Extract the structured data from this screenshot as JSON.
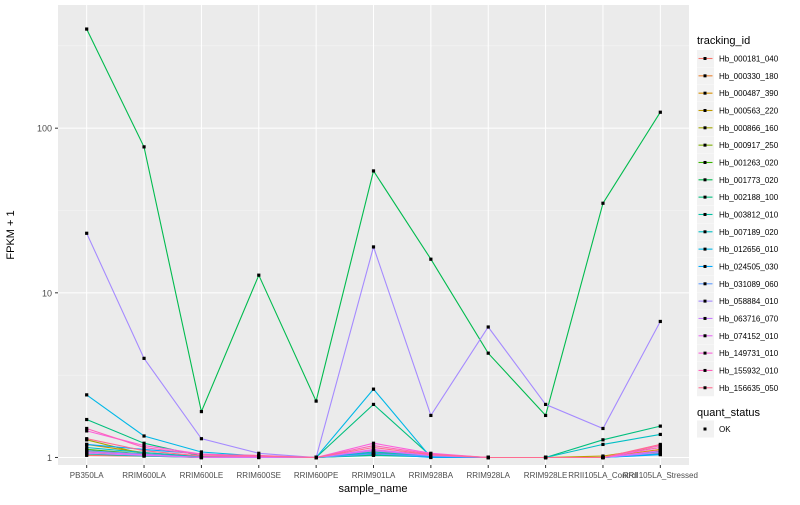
{
  "chart_data": {
    "type": "line",
    "y_scale": "log10",
    "ylabel": "FPKM + 1",
    "xlabel": "sample_name",
    "categories": [
      "PB350LA",
      "RRIM600LA",
      "RRIM600LE",
      "RRIM600SE",
      "RRIM600PE",
      "RRIM901LA",
      "RRIM928BA",
      "RRIM928LA",
      "RRIM928LE",
      "RRII105LA_Control",
      "RRII105LA_Stressed"
    ],
    "y_ticks": [
      {
        "value": 1,
        "label": "1"
      },
      {
        "value": 10,
        "label": "10"
      },
      {
        "value": 100,
        "label": "100"
      }
    ],
    "ylim": [
      0.9,
      560
    ],
    "legend_color": {
      "title": "tracking_id",
      "position": "right"
    },
    "legend_shape": {
      "title": "quant_status",
      "items": [
        {
          "label": "OK"
        }
      ]
    },
    "series": [
      {
        "name": "Hb_000181_040",
        "color": "#F8766D",
        "values": [
          1.03,
          1.02,
          1.0,
          1.0,
          1.0,
          1.05,
          1.02,
          1.0,
          1.0,
          1.0,
          1.08
        ]
      },
      {
        "name": "Hb_000330_180",
        "color": "#EA8331",
        "values": [
          1.05,
          1.03,
          1.0,
          1.01,
          1.0,
          1.06,
          1.03,
          1.0,
          1.0,
          1.0,
          1.1
        ]
      },
      {
        "name": "Hb_000487_390",
        "color": "#D89000",
        "values": [
          1.1,
          1.04,
          1.0,
          1.02,
          1.0,
          1.08,
          1.04,
          1.0,
          1.0,
          1.0,
          1.12
        ]
      },
      {
        "name": "Hb_000563_220",
        "color": "#C09B00",
        "values": [
          1.2,
          1.07,
          1.01,
          1.02,
          1.0,
          1.1,
          1.05,
          1.0,
          1.0,
          1.02,
          1.15
        ]
      },
      {
        "name": "Hb_000866_160",
        "color": "#A3A500",
        "values": [
          1.28,
          1.05,
          1.0,
          1.01,
          1.0,
          1.04,
          1.03,
          1.0,
          1.0,
          1.0,
          1.07
        ]
      },
      {
        "name": "Hb_000917_250",
        "color": "#7CAE00",
        "values": [
          1.08,
          1.03,
          1.0,
          1.0,
          1.0,
          1.05,
          1.02,
          1.0,
          1.0,
          1.0,
          1.06
        ]
      },
      {
        "name": "Hb_001263_020",
        "color": "#39B600",
        "values": [
          1.12,
          1.05,
          1.0,
          1.01,
          1.0,
          1.04,
          1.02,
          1.0,
          1.0,
          1.0,
          1.09
        ]
      },
      {
        "name": "Hb_001773_020",
        "color": "#00BB4E",
        "values": [
          400,
          77,
          1.9,
          12.8,
          2.2,
          55,
          16,
          4.3,
          1.8,
          35,
          125
        ]
      },
      {
        "name": "Hb_002188_100",
        "color": "#00BF7D",
        "values": [
          1.7,
          1.22,
          1.02,
          1.02,
          1.0,
          2.1,
          1.02,
          1.0,
          1.0,
          1.28,
          1.55
        ]
      },
      {
        "name": "Hb_003812_010",
        "color": "#00C1A3",
        "values": [
          1.05,
          1.02,
          1.0,
          1.0,
          1.0,
          1.03,
          1.01,
          1.0,
          1.0,
          1.0,
          1.05
        ]
      },
      {
        "name": "Hb_007189_020",
        "color": "#00BFC4",
        "values": [
          1.15,
          1.07,
          1.01,
          1.01,
          1.0,
          1.08,
          1.02,
          1.0,
          1.0,
          1.2,
          1.38
        ]
      },
      {
        "name": "Hb_012656_010",
        "color": "#00B8E7",
        "values": [
          2.4,
          1.35,
          1.08,
          1.02,
          1.0,
          2.6,
          1.0,
          1.0,
          1.0,
          1.0,
          1.05
        ]
      },
      {
        "name": "Hb_024505_030",
        "color": "#00A9FF",
        "values": [
          1.2,
          1.12,
          1.05,
          1.02,
          1.0,
          1.06,
          1.0,
          1.0,
          1.0,
          1.0,
          1.04
        ]
      },
      {
        "name": "Hb_031089_060",
        "color": "#619CFF",
        "values": [
          1.1,
          1.05,
          1.0,
          1.01,
          1.0,
          1.05,
          1.02,
          1.0,
          1.0,
          1.0,
          1.08
        ]
      },
      {
        "name": "Hb_058884_010",
        "color": "#A58AFF",
        "values": [
          23,
          4.0,
          1.3,
          1.06,
          1.0,
          19,
          1.8,
          6.2,
          2.1,
          1.5,
          6.7
        ]
      },
      {
        "name": "Hb_063716_070",
        "color": "#C77CFF",
        "values": [
          1.06,
          1.03,
          1.0,
          1.0,
          1.0,
          1.1,
          1.03,
          1.0,
          1.0,
          1.0,
          1.07
        ]
      },
      {
        "name": "Hb_074152_010",
        "color": "#E76BF3",
        "values": [
          1.08,
          1.04,
          1.0,
          1.01,
          1.0,
          1.12,
          1.03,
          1.0,
          1.0,
          1.0,
          1.1
        ]
      },
      {
        "name": "Hb_149731_010",
        "color": "#FA62DB",
        "values": [
          1.45,
          1.18,
          1.05,
          1.02,
          1.0,
          1.22,
          1.06,
          1.0,
          1.0,
          1.0,
          1.15
        ]
      },
      {
        "name": "Hb_155932_010",
        "color": "#FF62BC",
        "values": [
          1.5,
          1.15,
          1.04,
          1.03,
          1.0,
          1.18,
          1.05,
          1.0,
          1.0,
          1.0,
          1.18
        ]
      },
      {
        "name": "Hb_156635_050",
        "color": "#FF6C91",
        "values": [
          1.3,
          1.1,
          1.02,
          1.02,
          1.0,
          1.15,
          1.04,
          1.0,
          1.0,
          1.0,
          1.2
        ]
      }
    ]
  }
}
